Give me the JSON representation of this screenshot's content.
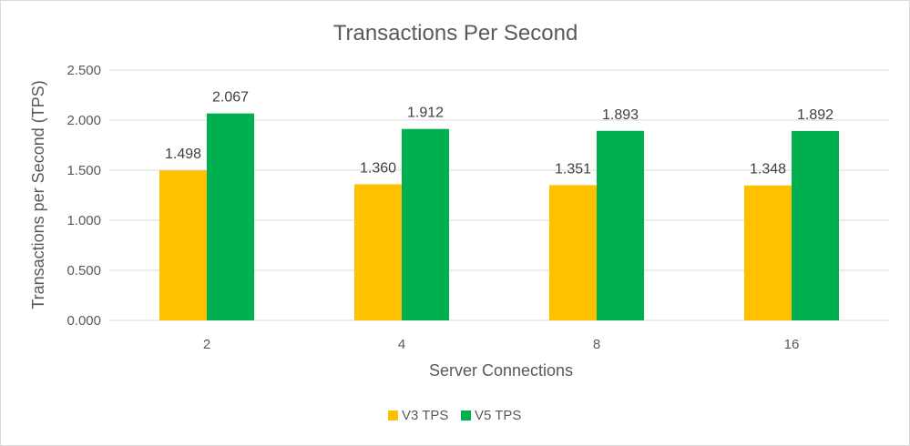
{
  "chart_data": {
    "type": "bar",
    "title": "Transactions Per Second",
    "xlabel": "Server Connections",
    "ylabel": "Transactions per Second (TPS)",
    "categories": [
      "2",
      "4",
      "8",
      "16"
    ],
    "ylim": [
      0,
      2.5
    ],
    "yticks": [
      "0.000",
      "0.500",
      "1.000",
      "1.500",
      "2.000",
      "2.500"
    ],
    "ytick_values": [
      0,
      0.5,
      1.0,
      1.5,
      2.0,
      2.5
    ],
    "grid": true,
    "legend_position": "bottom",
    "series": [
      {
        "name": "V3 TPS",
        "color": "#FFC000",
        "values": [
          1.498,
          1.36,
          1.351,
          1.348
        ],
        "labels": [
          "1.498",
          "1.360",
          "1.351",
          "1.348"
        ]
      },
      {
        "name": "V5 TPS",
        "color": "#00B050",
        "values": [
          2.067,
          1.912,
          1.893,
          1.892
        ],
        "labels": [
          "2.067",
          "1.912",
          "1.893",
          "1.892"
        ]
      }
    ]
  }
}
